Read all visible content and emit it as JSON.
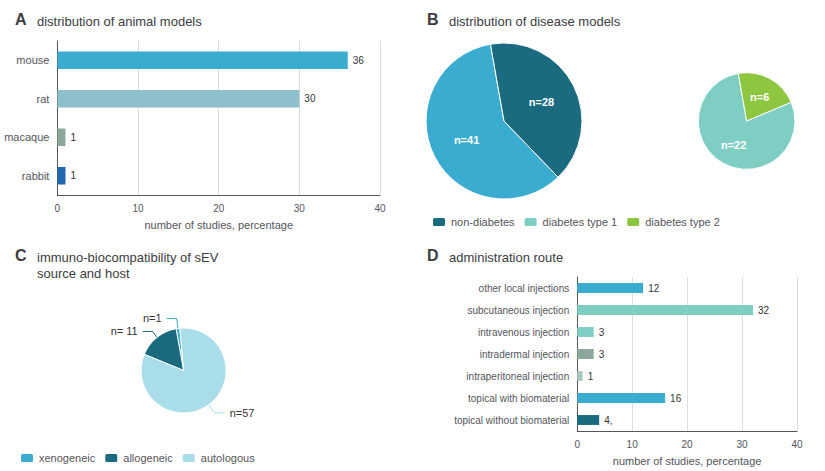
{
  "chart_data": [
    {
      "type": "bar",
      "orientation": "horizontal",
      "title": "distribution of animal models",
      "annotations": [
        "A"
      ],
      "categories": [
        "rabbit",
        "macaque",
        "rat",
        "mouse"
      ],
      "values": [
        1,
        1,
        30,
        36
      ],
      "colors": [
        "#2166ac",
        "#8ca89a",
        "#8dbfcc",
        "#3aaccf"
      ],
      "xlabel": "number of studies, percentage",
      "xlim": [
        0,
        40
      ],
      "xticks": [
        0,
        10,
        20,
        30,
        40
      ],
      "grid": true,
      "data_labels": true
    },
    {
      "type": "pie",
      "title": "distribution of disease models",
      "annotations": [
        "B"
      ],
      "series": [
        {
          "categories": [
            null,
            "non-diabetes"
          ],
          "values": [
            41,
            28
          ],
          "value_labels": [
            "n=41",
            "n=28"
          ],
          "colors": [
            "#3aaccf",
            "#1b6b80"
          ]
        },
        {
          "categories": [
            "diabetes type 1",
            "diabetes type 2"
          ],
          "values": [
            22,
            6
          ],
          "value_labels": [
            "n=22",
            "n=6"
          ],
          "colors": [
            "#7ecec4",
            "#8dc63f"
          ]
        }
      ],
      "data_labels": true,
      "legend": "bottom"
    },
    {
      "type": "pie",
      "title": "immuno-biocompatibility of sEV\nsource and host",
      "annotations": [
        "C"
      ],
      "categories": [
        "xenogeneic",
        "allogeneic",
        "autologous"
      ],
      "values": [
        1,
        11,
        57
      ],
      "value_labels": [
        "n=1",
        "n= 11",
        "n=57"
      ],
      "colors": [
        "#3aaccf",
        "#1b6b80",
        "#a8dde9"
      ],
      "data_labels": true,
      "legend": "bottom"
    },
    {
      "type": "bar",
      "orientation": "horizontal",
      "title": "administration route",
      "annotations": [
        "D"
      ],
      "categories": [
        "topical without biomaterial",
        "topical with biomaterial",
        "intraperitoneal injection",
        "intradermal injection",
        "intravenous injection",
        "subcutaneous injection",
        "other local injections"
      ],
      "values": [
        4,
        16,
        1,
        3,
        3,
        32,
        12
      ],
      "value_labels": [
        "4,",
        "16",
        "1",
        "3",
        "3",
        "32",
        "12"
      ],
      "colors": [
        "#1b6b80",
        "#3aaccf",
        "#a8c8c0",
        "#8ca89a",
        "#7ecec4",
        "#7ecec4",
        "#3aaccf"
      ],
      "xlabel": "number of studies, percentage",
      "xlim": [
        0,
        40
      ],
      "xticks": [
        0,
        10,
        20,
        30,
        40
      ],
      "grid": true,
      "data_labels": true
    }
  ]
}
